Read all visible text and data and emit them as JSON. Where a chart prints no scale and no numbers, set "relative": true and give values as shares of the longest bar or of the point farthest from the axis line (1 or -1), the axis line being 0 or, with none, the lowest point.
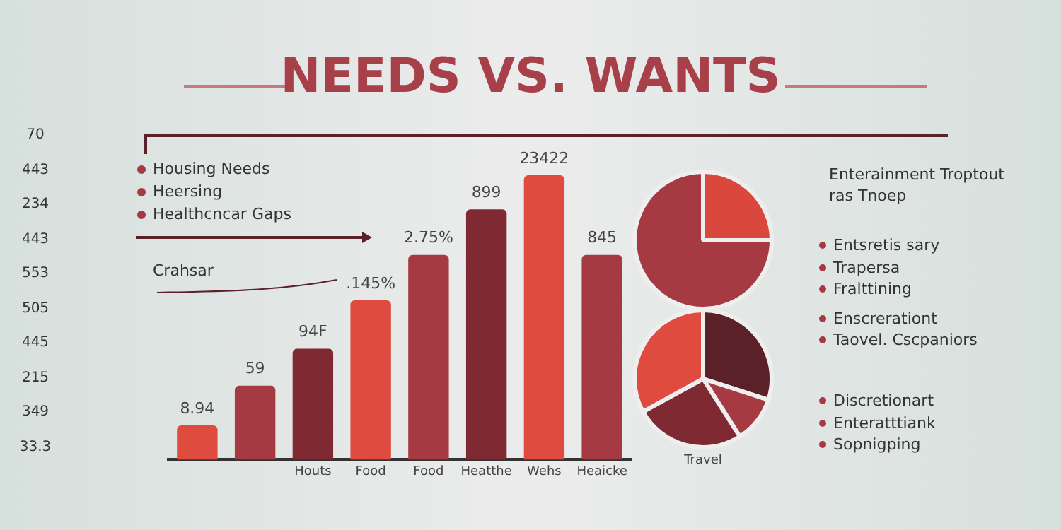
{
  "chart_data": [
    {
      "type": "bar",
      "title": "NEEDS VS. WANTS",
      "relative": true,
      "categories": [
        null,
        null,
        "Houts",
        "Food",
        "Food",
        "Heatthe",
        "Wehs",
        "Heaicke"
      ],
      "values": [
        0.12,
        0.26,
        0.39,
        0.56,
        0.72,
        0.88,
        1,
        0.72
      ],
      "colors": [
        "#e04b3f",
        "#a63a42",
        "#7f2a33",
        "#e04b3f",
        "#a63a42",
        "#7f2a33",
        "#e04b3f",
        "#a63a42"
      ],
      "annotations": [
        "70",
        "443",
        "234",
        "443",
        "553",
        "505",
        "445",
        "215",
        "349",
        "33.3",
        "Housing Needs",
        "Heersing",
        "Healthcncar Gaps",
        "Crahsar",
        "8.94",
        "59",
        "94F",
        ".145%",
        "2.75%",
        "899",
        "23422",
        "845"
      ]
    },
    {
      "type": "pie",
      "categories": [
        null,
        null
      ],
      "values": [
        25,
        75
      ],
      "colors": [
        "#d9473d",
        "#a63a42"
      ],
      "annotations": [
        "Enterainment Troptout ras Tnoep",
        "Entsretis sary",
        "Trapersa",
        "Fralttining",
        "Enscrerationt",
        "Taovel. Cscpaniors"
      ]
    },
    {
      "type": "pie",
      "xlabel": "Travel",
      "categories": [
        null,
        null,
        null,
        null
      ],
      "values": [
        30,
        11,
        26,
        33
      ],
      "colors": [
        "#5a2228",
        "#a63a42",
        "#7f2a33",
        "#e04b3f"
      ],
      "annotations": [
        "Discretionart",
        "Enteratttiank",
        "Sopnigping"
      ]
    }
  ]
}
